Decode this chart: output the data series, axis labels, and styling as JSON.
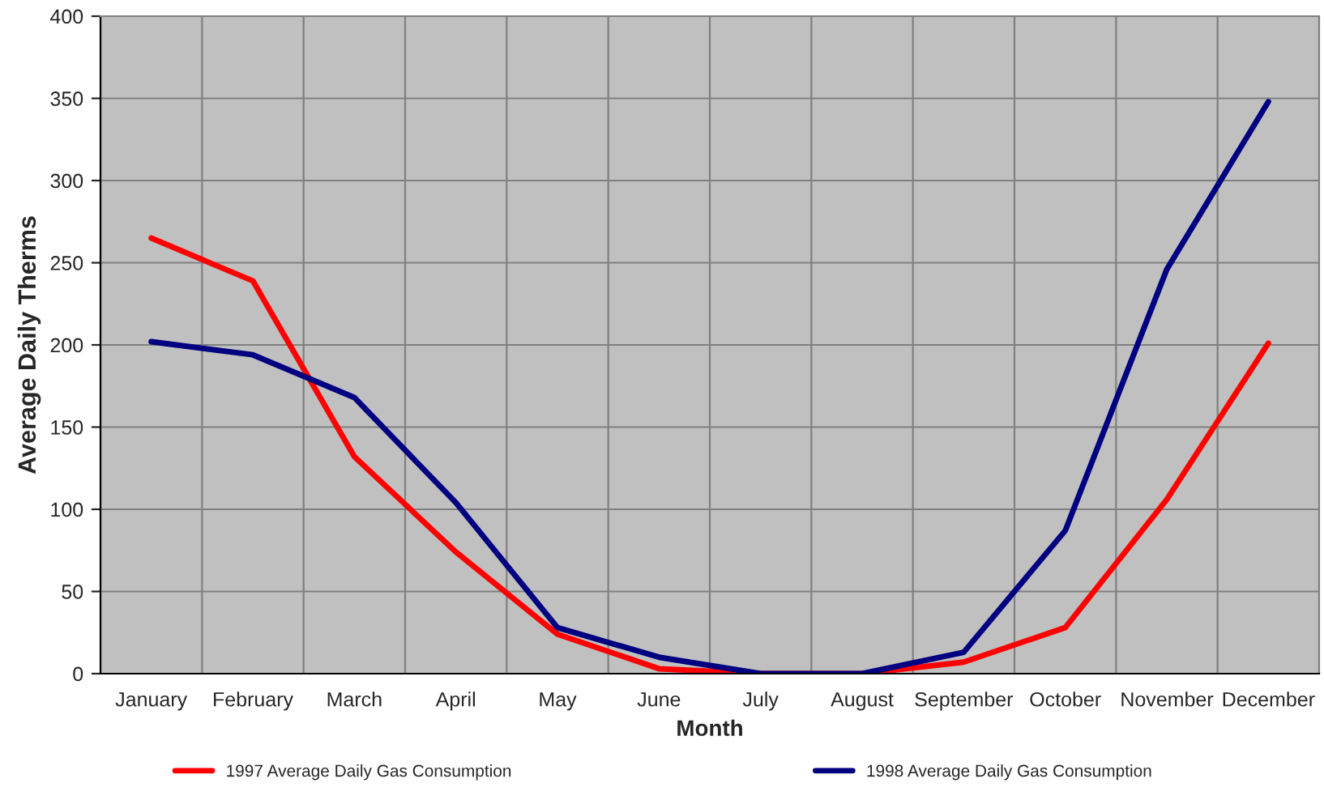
{
  "chart_data": {
    "type": "line",
    "xlabel": "Month",
    "ylabel": "Average Daily Therms",
    "categories": [
      "January",
      "February",
      "March",
      "April",
      "May",
      "June",
      "July",
      "August",
      "September",
      "October",
      "November",
      "December"
    ],
    "series": [
      {
        "name": "1997 Average Daily Gas Consumption",
        "color": "#ff0000",
        "values": [
          265,
          239,
          132,
          74,
          24,
          3,
          0,
          0,
          7,
          28,
          106,
          201
        ]
      },
      {
        "name": "1998 Average Daily Gas Consumption",
        "color": "#000080",
        "values": [
          202,
          194,
          168,
          104,
          28,
          10,
          0,
          0,
          13,
          87,
          246,
          348
        ]
      }
    ],
    "ylim": [
      0,
      400
    ],
    "yticks": [
      0,
      50,
      100,
      150,
      200,
      250,
      300,
      350,
      400
    ],
    "grid": true,
    "legend": "bottom",
    "marker": "none",
    "line_style": "solid"
  }
}
